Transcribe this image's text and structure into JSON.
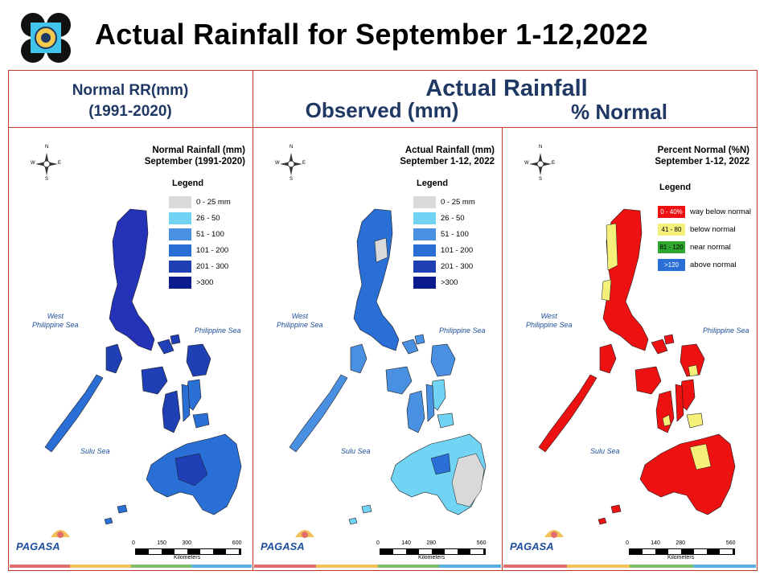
{
  "title": "Actual Rainfall for September 1-12,2022",
  "headers": {
    "normal_line1": "Normal RR(mm)",
    "normal_line2": "(1991-2020)",
    "actual": "Actual Rainfall",
    "observed": "Observed (mm)",
    "percent": "% Normal"
  },
  "panels": [
    {
      "title_line1": "Normal Rainfall (mm)",
      "title_line2": "September (1991-2020)",
      "legend_title": "Legend",
      "legend": [
        {
          "label": "0 - 25 mm",
          "color": "#d9d9d9"
        },
        {
          "label": "26 - 50",
          "color": "#72d4f5"
        },
        {
          "label": "51 - 100",
          "color": "#4a90e2"
        },
        {
          "label": "101 - 200",
          "color": "#2a6fd6"
        },
        {
          "label": "201 - 300",
          "color": "#1f3fb4"
        },
        {
          "label": ">300",
          "color": "#0b1a8c"
        }
      ],
      "sea_west_1": "West",
      "sea_west_2": "Philippine Sea",
      "sea_east": "Philippine Sea",
      "sea_sulu": "Sulu Sea",
      "scale": [
        "0",
        "150",
        "300",
        "600"
      ],
      "scale_unit": "Kilometers"
    },
    {
      "title_line1": "Actual Rainfall (mm)",
      "title_line2": "September 1-12, 2022",
      "legend_title": "Legend",
      "legend": [
        {
          "label": "0 - 25 mm",
          "color": "#d9d9d9"
        },
        {
          "label": "26 - 50",
          "color": "#72d4f5"
        },
        {
          "label": "51 - 100",
          "color": "#4a90e2"
        },
        {
          "label": "101 - 200",
          "color": "#2a6fd6"
        },
        {
          "label": "201 - 300",
          "color": "#1f3fb4"
        },
        {
          "label": ">300",
          "color": "#0b1a8c"
        }
      ],
      "sea_west_1": "West",
      "sea_west_2": "Philippine Sea",
      "sea_east": "Philippine Sea",
      "sea_sulu": "Sulu Sea",
      "scale": [
        "0",
        "140",
        "280",
        "560"
      ],
      "scale_unit": "Kilometers"
    },
    {
      "title_line1": "Percent Normal (%N)",
      "title_line2": "September 1-12, 2022",
      "legend_title": "Legend",
      "legend": [
        {
          "range": "0 - 40%",
          "label": "way below normal",
          "color": "#ee1111"
        },
        {
          "range": "41 - 80",
          "label": "below normal",
          "color": "#f5f07a"
        },
        {
          "range": "81 - 120",
          "label": "near normal",
          "color": "#2ea82e"
        },
        {
          "range": ">120",
          "label": "above normal",
          "color": "#2a6fd6"
        }
      ],
      "sea_west_1": "West",
      "sea_west_2": "Philippine Sea",
      "sea_east": "Philippine Sea",
      "sea_sulu": "Sulu Sea",
      "scale": [
        "0",
        "140",
        "280",
        "560"
      ],
      "scale_unit": "Kilometers"
    }
  ],
  "brand": "PAGASA",
  "colors": {
    "frame": "#c0392b",
    "header_text": "#1f3864",
    "sea_label": "#1f4e9c"
  },
  "footer_colors": [
    "#e26d6d",
    "#f3c15a",
    "#7fbf6a",
    "#5aaee0"
  ]
}
